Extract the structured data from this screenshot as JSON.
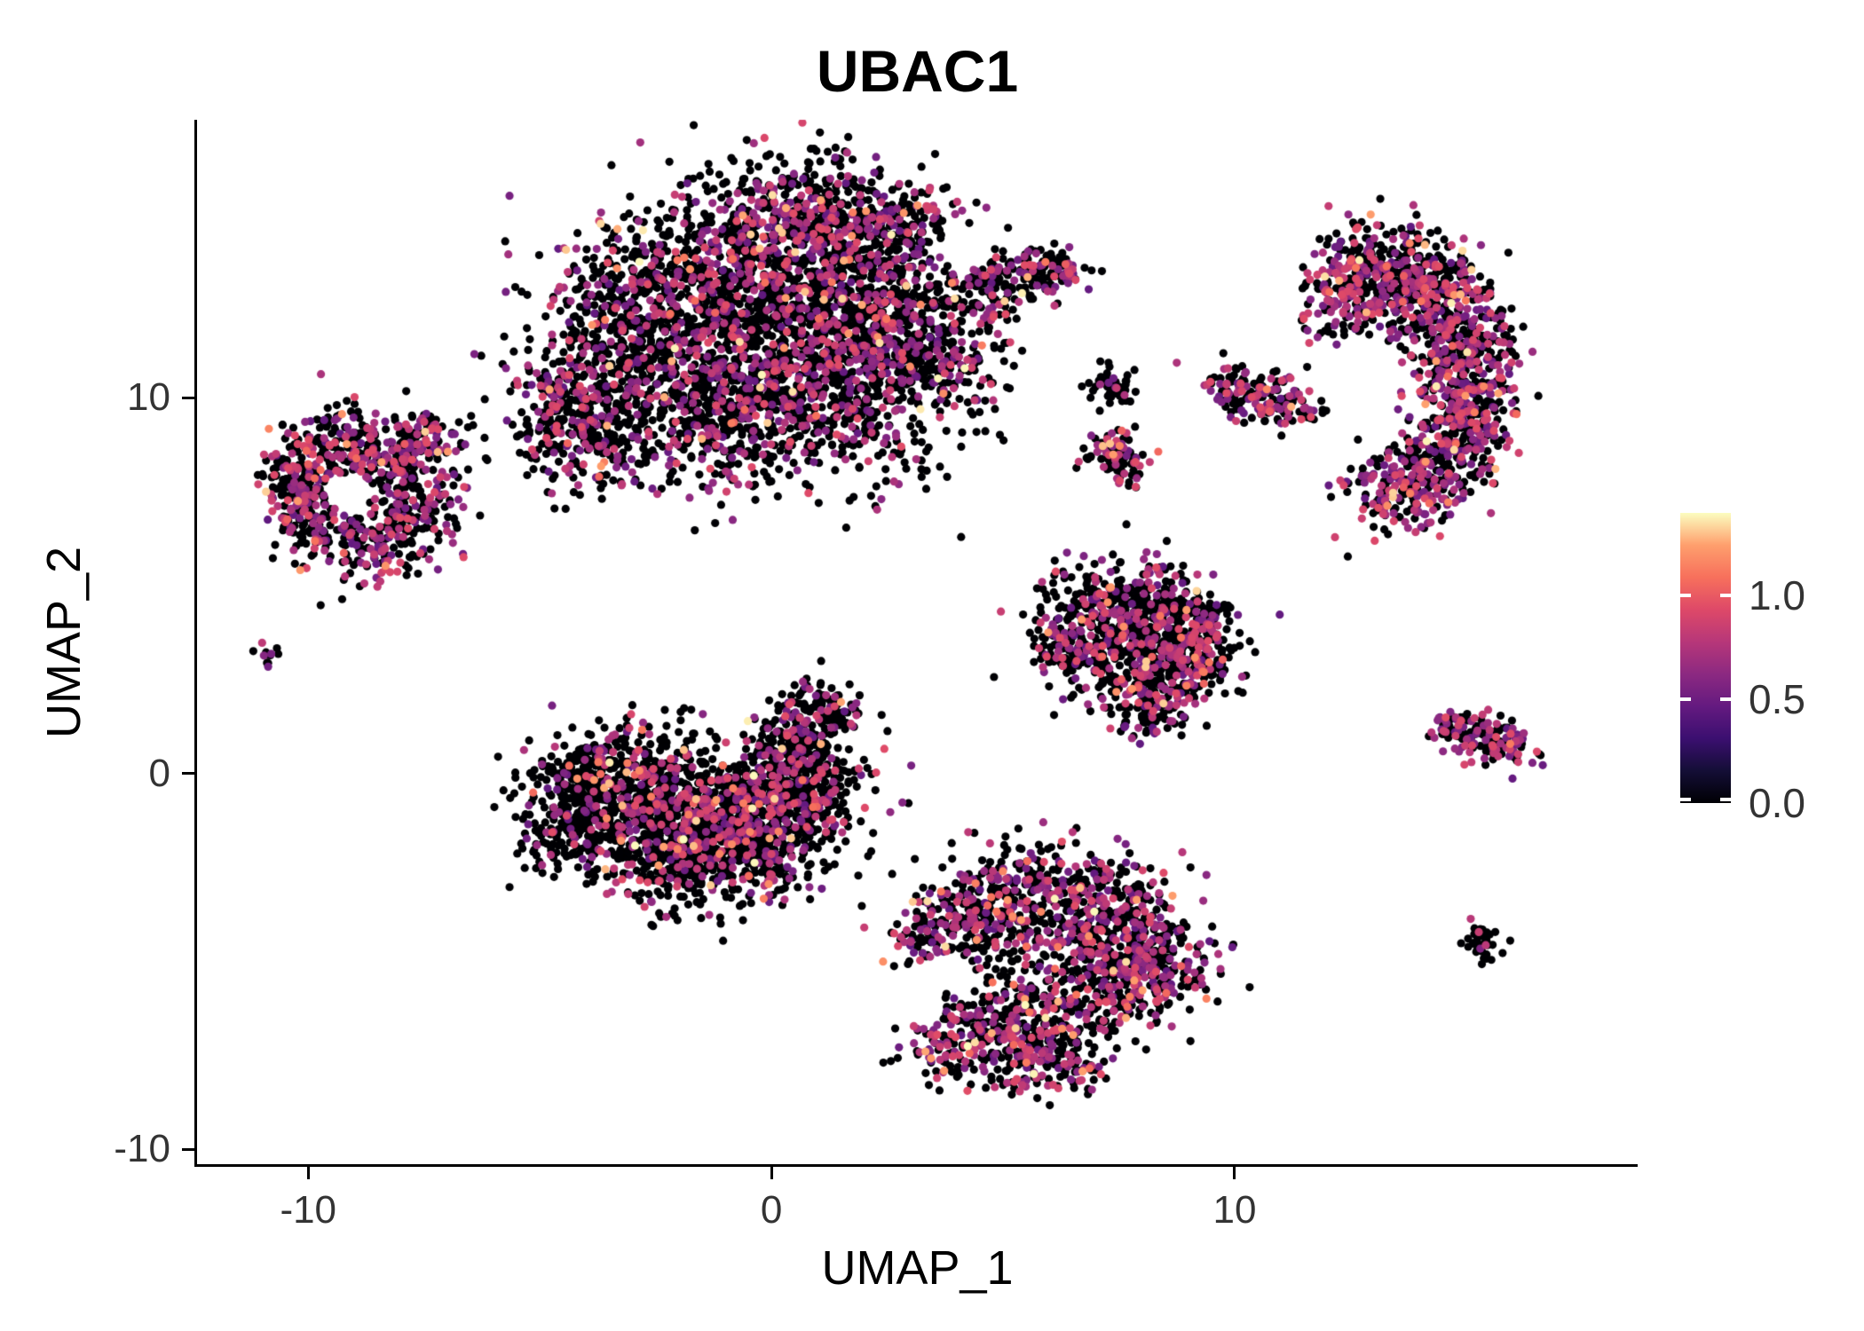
{
  "title": "UBAC1",
  "axes": {
    "x": {
      "label": "UMAP_1",
      "ticks": [
        -10,
        0,
        10
      ]
    },
    "y": {
      "label": "UMAP_2",
      "ticks": [
        10,
        0,
        -10
      ]
    }
  },
  "legend": {
    "ticks": [
      1.0,
      0.5,
      0.0
    ],
    "tick_labels": [
      "1.0",
      "0.5",
      "0.0"
    ],
    "domain": [
      0,
      1.4
    ]
  },
  "chart_data": {
    "type": "scatter",
    "title": "UBAC1",
    "xlabel": "UMAP_1",
    "ylabel": "UMAP_2",
    "xlim": [
      -12.4,
      18.7
    ],
    "ylim": [
      -10.4,
      17.4
    ],
    "x_ticks": [
      -10,
      0,
      10
    ],
    "y_ticks": [
      -10,
      0,
      10
    ],
    "grid": false,
    "legend_position": "right",
    "point_radius_px": 4.6,
    "seed": 42,
    "color_scale": {
      "name": "magma",
      "domain": [
        0,
        1.4
      ],
      "stops": [
        [
          0.0,
          "#000004"
        ],
        [
          0.111,
          "#140e36"
        ],
        [
          0.222,
          "#3b0f70"
        ],
        [
          0.333,
          "#641a80"
        ],
        [
          0.444,
          "#8c2981"
        ],
        [
          0.556,
          "#b73779"
        ],
        [
          0.667,
          "#de4968"
        ],
        [
          0.778,
          "#f7705c"
        ],
        [
          0.889,
          "#fe9f6d"
        ],
        [
          1.0,
          "#fcfdbf"
        ]
      ]
    },
    "clusters": [
      {
        "name": "top-center-main",
        "expr": {
          "p_zero": 0.7,
          "p_high": 0.02,
          "mid": [
            0.45,
            0.95
          ],
          "high": [
            1.0,
            1.4
          ]
        },
        "blobs": [
          [
            -3.5,
            10.5,
            1.2,
            350
          ],
          [
            -1.5,
            11.5,
            1.6,
            600
          ],
          [
            0.5,
            12.5,
            1.6,
            650
          ],
          [
            -0.5,
            14.0,
            1.2,
            350
          ],
          [
            1.5,
            14.5,
            0.9,
            250
          ],
          [
            2.5,
            12.0,
            1.2,
            400
          ],
          [
            1.5,
            10.0,
            1.2,
            400
          ],
          [
            -1.0,
            9.5,
            1.0,
            300
          ],
          [
            3.5,
            11.0,
            0.8,
            200
          ],
          [
            -4.5,
            9.8,
            0.6,
            120
          ],
          [
            2.8,
            14.7,
            0.6,
            120
          ],
          [
            -3.0,
            13.0,
            0.8,
            180
          ],
          [
            -3.8,
            8.8,
            0.7,
            150
          ],
          [
            0.8,
            15.2,
            0.5,
            90
          ],
          [
            4.8,
            13.0,
            0.45,
            110
          ],
          [
            5.8,
            13.3,
            0.35,
            80
          ],
          [
            6.3,
            13.4,
            0.25,
            40
          ]
        ],
        "voids": [
          [
            4.2,
            14.0,
            0.6
          ]
        ]
      },
      {
        "name": "top-right-crescent",
        "expr": {
          "p_zero": 0.52,
          "p_high": 0.03,
          "mid": [
            0.45,
            0.95
          ],
          "high": [
            1.0,
            1.4
          ]
        },
        "blobs": [
          [
            13.3,
            13.5,
            0.7,
            220
          ],
          [
            14.3,
            12.8,
            0.65,
            220
          ],
          [
            14.8,
            11.5,
            0.6,
            200
          ],
          [
            15.0,
            10.2,
            0.6,
            190
          ],
          [
            14.8,
            9.0,
            0.6,
            180
          ],
          [
            14.2,
            8.0,
            0.55,
            160
          ],
          [
            13.3,
            7.4,
            0.5,
            120
          ],
          [
            12.6,
            13.1,
            0.5,
            110
          ],
          [
            12.2,
            12.3,
            0.4,
            70
          ]
        ],
        "voids": [
          [
            12.9,
            10.6,
            0.65
          ]
        ]
      },
      {
        "name": "small-cluster-mid-a",
        "expr": {
          "p_zero": 0.75,
          "p_high": 0.0,
          "mid": [
            0.45,
            0.9
          ],
          "high": [
            1.0,
            1.3
          ]
        },
        "blobs": [
          [
            7.4,
            10.3,
            0.25,
            45
          ]
        ],
        "voids": []
      },
      {
        "name": "small-cluster-mid-b",
        "expr": {
          "p_zero": 0.55,
          "p_high": 0.02,
          "mid": [
            0.45,
            0.95
          ],
          "high": [
            1.0,
            1.3
          ]
        },
        "blobs": [
          [
            9.9,
            10.3,
            0.3,
            60
          ],
          [
            10.6,
            10.0,
            0.35,
            80
          ],
          [
            11.3,
            9.75,
            0.28,
            50
          ]
        ],
        "voids": []
      },
      {
        "name": "small-cluster-mid-c",
        "expr": {
          "p_zero": 0.55,
          "p_high": 0.08,
          "mid": [
            0.45,
            0.95
          ],
          "high": [
            1.0,
            1.35
          ]
        },
        "blobs": [
          [
            7.3,
            8.6,
            0.3,
            55
          ],
          [
            7.6,
            8.15,
            0.25,
            35
          ]
        ],
        "voids": []
      },
      {
        "name": "left-cluster",
        "expr": {
          "p_zero": 0.58,
          "p_high": 0.02,
          "mid": [
            0.45,
            0.95
          ],
          "high": [
            1.0,
            1.35
          ]
        },
        "blobs": [
          [
            -9.3,
            8.8,
            0.6,
            160
          ],
          [
            -8.2,
            8.3,
            0.6,
            150
          ],
          [
            -7.8,
            7.0,
            0.6,
            140
          ],
          [
            -8.8,
            6.2,
            0.6,
            130
          ],
          [
            -10.0,
            6.8,
            0.5,
            110
          ],
          [
            -10.2,
            7.9,
            0.45,
            100
          ],
          [
            -7.4,
            8.9,
            0.4,
            70
          ]
        ],
        "voids": [
          [
            -9.1,
            7.5,
            0.5
          ]
        ]
      },
      {
        "name": "tiny-dot-left",
        "expr": {
          "p_zero": 0.7,
          "p_high": 0.0,
          "mid": [
            0.5,
            0.9
          ],
          "high": [
            1.0,
            1.2
          ]
        },
        "blobs": [
          [
            -10.9,
            3.1,
            0.12,
            12
          ]
        ],
        "voids": []
      },
      {
        "name": "center-left-cluster",
        "expr": {
          "p_zero": 0.74,
          "p_high": 0.025,
          "mid": [
            0.45,
            0.95
          ],
          "high": [
            1.0,
            1.4
          ]
        },
        "blobs": [
          [
            -3.8,
            -0.3,
            0.8,
            300
          ],
          [
            -2.5,
            -0.8,
            1.0,
            450
          ],
          [
            -1.2,
            -1.2,
            1.0,
            450
          ],
          [
            0.0,
            -1.0,
            0.9,
            350
          ],
          [
            0.8,
            -0.3,
            0.6,
            200
          ],
          [
            0.5,
            0.8,
            0.5,
            150
          ],
          [
            1.1,
            1.7,
            0.4,
            100
          ],
          [
            -4.2,
            -1.5,
            0.6,
            150
          ],
          [
            -2.0,
            -2.3,
            0.7,
            200
          ],
          [
            -0.5,
            -2.2,
            0.6,
            150
          ]
        ],
        "voids": [
          [
            -0.9,
            0.5,
            0.3
          ]
        ]
      },
      {
        "name": "mid-right-cluster",
        "expr": {
          "p_zero": 0.7,
          "p_high": 0.03,
          "mid": [
            0.45,
            0.95
          ],
          "high": [
            1.0,
            1.35
          ]
        },
        "blobs": [
          [
            7.0,
            4.3,
            0.7,
            190
          ],
          [
            8.2,
            4.4,
            0.65,
            190
          ],
          [
            9.0,
            3.9,
            0.55,
            160
          ],
          [
            7.6,
            3.2,
            0.65,
            190
          ],
          [
            8.6,
            2.6,
            0.5,
            130
          ],
          [
            8.0,
            1.8,
            0.45,
            100
          ],
          [
            9.3,
            3.0,
            0.4,
            80
          ],
          [
            6.4,
            3.4,
            0.4,
            80
          ]
        ],
        "voids": []
      },
      {
        "name": "right-small-cluster",
        "expr": {
          "p_zero": 0.5,
          "p_high": 0.02,
          "mid": [
            0.45,
            0.95
          ],
          "high": [
            1.0,
            1.3
          ]
        },
        "blobs": [
          [
            14.7,
            1.3,
            0.25,
            45
          ],
          [
            15.3,
            1.0,
            0.32,
            75
          ],
          [
            16.0,
            0.7,
            0.28,
            50
          ]
        ],
        "voids": []
      },
      {
        "name": "bottom-cluster",
        "expr": {
          "p_zero": 0.6,
          "p_high": 0.035,
          "mid": [
            0.45,
            0.95
          ],
          "high": [
            1.0,
            1.4
          ]
        },
        "blobs": [
          [
            4.3,
            -3.8,
            0.7,
            170
          ],
          [
            5.5,
            -3.4,
            0.8,
            210
          ],
          [
            6.8,
            -3.6,
            0.8,
            210
          ],
          [
            7.9,
            -4.2,
            0.7,
            190
          ],
          [
            8.4,
            -5.2,
            0.6,
            150
          ],
          [
            7.3,
            -5.6,
            0.7,
            170
          ],
          [
            6.0,
            -6.3,
            0.7,
            170
          ],
          [
            4.8,
            -6.8,
            0.6,
            130
          ],
          [
            3.8,
            -7.3,
            0.5,
            100
          ],
          [
            5.5,
            -7.7,
            0.5,
            90
          ],
          [
            3.5,
            -4.5,
            0.45,
            80
          ],
          [
            6.6,
            -7.9,
            0.35,
            60
          ]
        ],
        "voids": [
          [
            3.8,
            -5.3,
            0.55
          ]
        ]
      },
      {
        "name": "small-bottom-right-dot",
        "expr": {
          "p_zero": 0.85,
          "p_high": 0.005,
          "mid": [
            0.5,
            0.9
          ],
          "high": [
            1.0,
            1.2
          ]
        },
        "blobs": [
          [
            15.4,
            -4.5,
            0.22,
            45
          ]
        ],
        "voids": []
      }
    ]
  }
}
